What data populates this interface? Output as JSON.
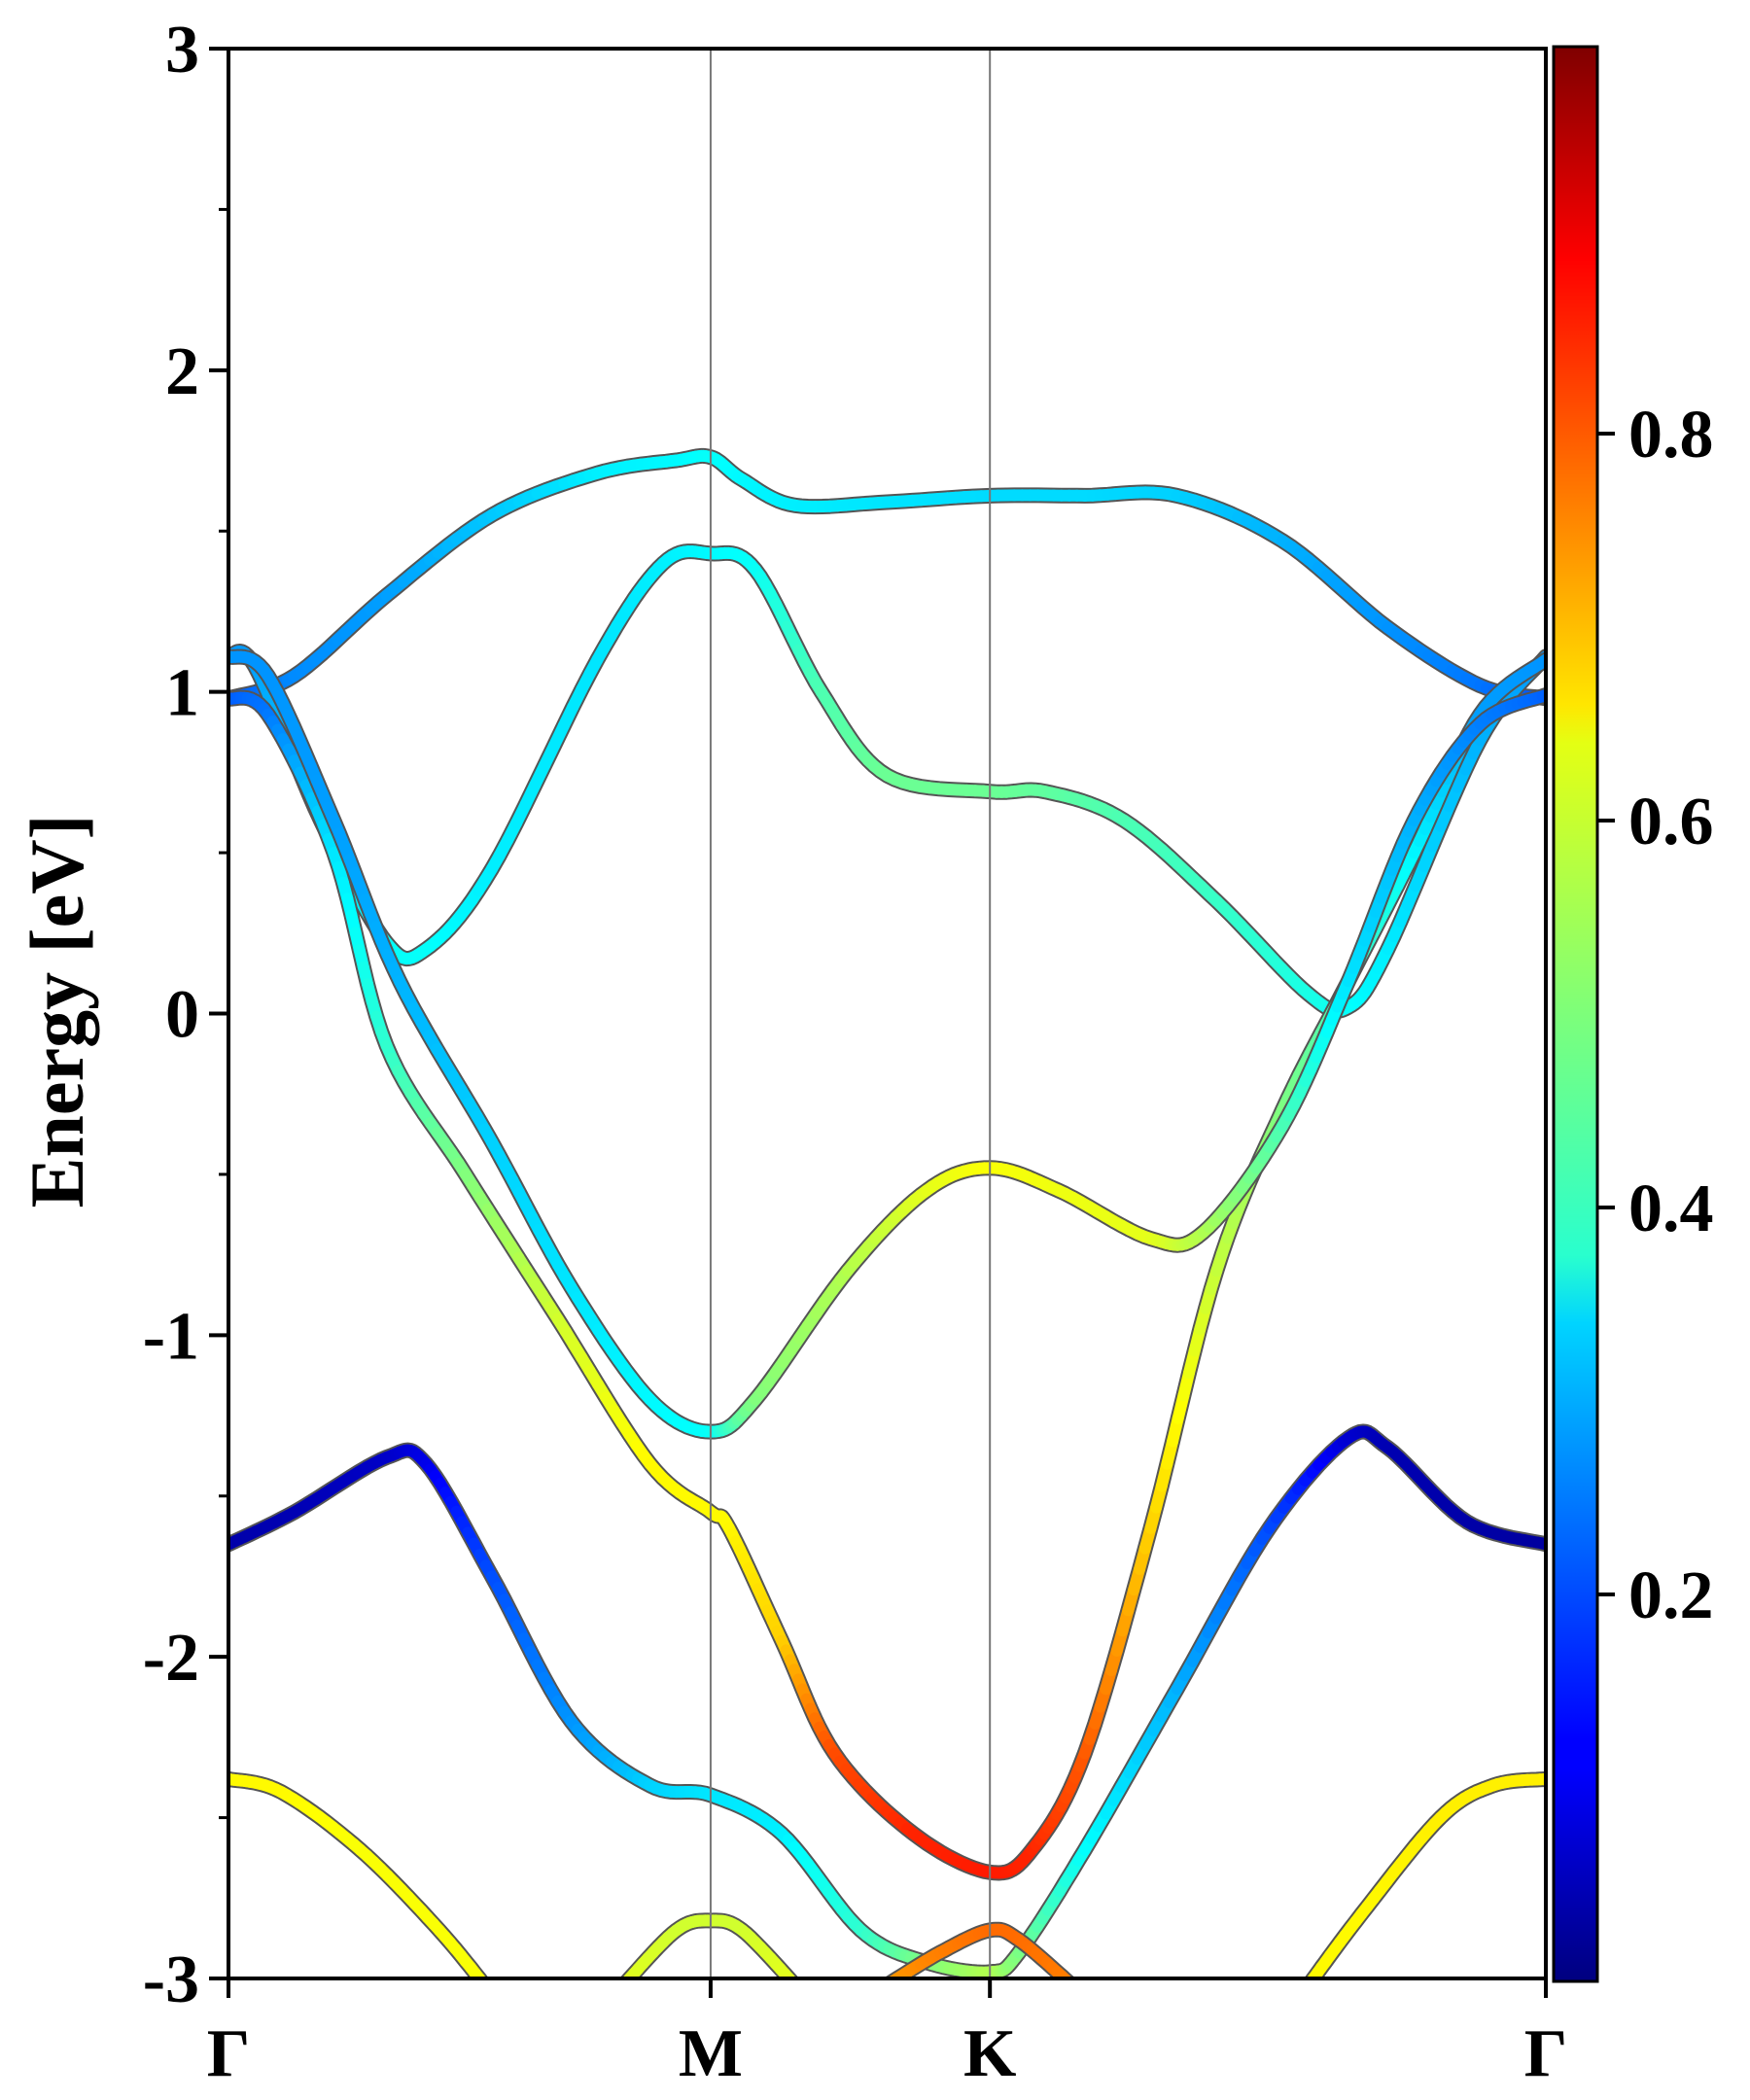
{
  "chart_data": {
    "type": "line",
    "title": "",
    "xlabel": "",
    "ylabel": "Energy [eV]",
    "ylim": [
      -3,
      3
    ],
    "yticks": [
      "3",
      "2",
      "1",
      "0",
      "-1",
      "-2",
      "-3"
    ],
    "ytick_values": [
      3,
      2,
      1,
      0,
      -1,
      -2,
      -3
    ],
    "yminor_ticks": [
      -2.5,
      -1.5,
      -0.5,
      0.5,
      1.5,
      2.5
    ],
    "kpoints": [
      {
        "label": "Γ",
        "x": 0.0
      },
      {
        "label": "M",
        "x": 0.366
      },
      {
        "label": "K",
        "x": 0.578
      },
      {
        "label": "Γ",
        "x": 1.0
      }
    ],
    "colorbar": {
      "colormap": "jet",
      "range": [
        0,
        1
      ],
      "tick_labels": [
        "0.2",
        "0.4",
        "0.6",
        "0.8"
      ],
      "tick_values": [
        0.2,
        0.4,
        0.6,
        0.8
      ]
    },
    "series": [
      {
        "name": "band-1",
        "points": [
          [
            0,
            0.98,
            0.2
          ],
          [
            0.05,
            1.05,
            0.26
          ],
          [
            0.12,
            1.3,
            0.28
          ],
          [
            0.2,
            1.55,
            0.32
          ],
          [
            0.28,
            1.68,
            0.36
          ],
          [
            0.34,
            1.72,
            0.37
          ],
          [
            0.366,
            1.73,
            0.38
          ],
          [
            0.39,
            1.66,
            0.37
          ],
          [
            0.43,
            1.58,
            0.36
          ],
          [
            0.5,
            1.59,
            0.35
          ],
          [
            0.578,
            1.61,
            0.34
          ],
          [
            0.65,
            1.61,
            0.34
          ],
          [
            0.72,
            1.61,
            0.33
          ],
          [
            0.8,
            1.47,
            0.3
          ],
          [
            0.88,
            1.2,
            0.27
          ],
          [
            0.95,
            1.02,
            0.24
          ],
          [
            1,
            0.98,
            0.2
          ]
        ]
      },
      {
        "name": "band-2",
        "points": [
          [
            0,
            1.11,
            0.27
          ],
          [
            0.02,
            1.08,
            0.28
          ],
          [
            0.07,
            0.6,
            0.33
          ],
          [
            0.12,
            0.22,
            0.38
          ],
          [
            0.15,
            0.2,
            0.38
          ],
          [
            0.2,
            0.45,
            0.36
          ],
          [
            0.28,
            1.1,
            0.35
          ],
          [
            0.33,
            1.4,
            0.36
          ],
          [
            0.366,
            1.43,
            0.37
          ],
          [
            0.4,
            1.38,
            0.38
          ],
          [
            0.45,
            1.0,
            0.45
          ],
          [
            0.5,
            0.74,
            0.48
          ],
          [
            0.578,
            0.69,
            0.48
          ],
          [
            0.62,
            0.69,
            0.47
          ],
          [
            0.68,
            0.6,
            0.45
          ],
          [
            0.75,
            0.35,
            0.43
          ],
          [
            0.82,
            0.06,
            0.4
          ],
          [
            0.85,
            0.02,
            0.38
          ],
          [
            0.88,
            0.2,
            0.36
          ],
          [
            0.95,
            0.85,
            0.3
          ],
          [
            1,
            1.11,
            0.27
          ]
        ]
      },
      {
        "name": "band-3",
        "points": [
          [
            0,
            0.98,
            0.21
          ],
          [
            0.03,
            0.93,
            0.24
          ],
          [
            0.08,
            0.5,
            0.35
          ],
          [
            0.12,
            -0.1,
            0.42
          ],
          [
            0.18,
            -0.5,
            0.5
          ],
          [
            0.25,
            -0.95,
            0.58
          ],
          [
            0.32,
            -1.4,
            0.63
          ],
          [
            0.366,
            -1.55,
            0.63
          ],
          [
            0.38,
            -1.6,
            0.63
          ],
          [
            0.42,
            -1.95,
            0.67
          ],
          [
            0.46,
            -2.3,
            0.8
          ],
          [
            0.52,
            -2.55,
            0.84
          ],
          [
            0.578,
            -2.67,
            0.85
          ],
          [
            0.61,
            -2.6,
            0.84
          ],
          [
            0.65,
            -2.3,
            0.79
          ],
          [
            0.7,
            -1.6,
            0.67
          ],
          [
            0.75,
            -0.8,
            0.57
          ],
          [
            0.8,
            -0.3,
            0.5
          ],
          [
            0.85,
            0.1,
            0.44
          ],
          [
            0.9,
            0.5,
            0.37
          ],
          [
            0.95,
            0.93,
            0.28
          ],
          [
            1,
            1.1,
            0.27
          ]
        ]
      },
      {
        "name": "band-4",
        "points": [
          [
            0,
            1.11,
            0.27
          ],
          [
            0.03,
            1.05,
            0.27
          ],
          [
            0.08,
            0.6,
            0.28
          ],
          [
            0.13,
            0.1,
            0.3
          ],
          [
            0.2,
            -0.4,
            0.33
          ],
          [
            0.26,
            -0.85,
            0.35
          ],
          [
            0.32,
            -1.2,
            0.37
          ],
          [
            0.366,
            -1.3,
            0.38
          ],
          [
            0.4,
            -1.2,
            0.5
          ],
          [
            0.47,
            -0.8,
            0.55
          ],
          [
            0.53,
            -0.55,
            0.6
          ],
          [
            0.578,
            -0.48,
            0.62
          ],
          [
            0.63,
            -0.55,
            0.61
          ],
          [
            0.7,
            -0.7,
            0.6
          ],
          [
            0.74,
            -0.68,
            0.55
          ],
          [
            0.8,
            -0.35,
            0.45
          ],
          [
            0.85,
            0.1,
            0.35
          ],
          [
            0.9,
            0.6,
            0.3
          ],
          [
            0.95,
            0.9,
            0.25
          ],
          [
            1,
            0.99,
            0.22
          ]
        ]
      },
      {
        "name": "band-5",
        "points": [
          [
            0,
            -1.65,
            0.04
          ],
          [
            0.05,
            -1.55,
            0.05
          ],
          [
            0.12,
            -1.38,
            0.07
          ],
          [
            0.15,
            -1.4,
            0.1
          ],
          [
            0.2,
            -1.75,
            0.2
          ],
          [
            0.26,
            -2.2,
            0.27
          ],
          [
            0.32,
            -2.4,
            0.33
          ],
          [
            0.366,
            -2.43,
            0.35
          ],
          [
            0.42,
            -2.55,
            0.36
          ],
          [
            0.48,
            -2.85,
            0.42
          ],
          [
            0.53,
            -2.95,
            0.5
          ],
          [
            0.578,
            -2.98,
            0.55
          ],
          [
            0.6,
            -2.92,
            0.5
          ],
          [
            0.65,
            -2.6,
            0.38
          ],
          [
            0.72,
            -2.1,
            0.3
          ],
          [
            0.79,
            -1.6,
            0.2
          ],
          [
            0.85,
            -1.32,
            0.08
          ],
          [
            0.88,
            -1.35,
            0.05
          ],
          [
            0.94,
            -1.58,
            0.04
          ],
          [
            1,
            -1.65,
            0.03
          ]
        ]
      },
      {
        "name": "band-6",
        "points": [
          [
            0,
            -2.38,
            0.63
          ],
          [
            0.04,
            -2.42,
            0.63
          ],
          [
            0.1,
            -2.6,
            0.62
          ],
          [
            0.16,
            -2.85,
            0.62
          ],
          [
            0.2,
            -3.05,
            0.62
          ]
        ]
      },
      {
        "name": "band-7",
        "points": [
          [
            0.3,
            -3.02,
            0.6
          ],
          [
            0.34,
            -2.85,
            0.58
          ],
          [
            0.366,
            -2.82,
            0.58
          ],
          [
            0.39,
            -2.85,
            0.58
          ],
          [
            0.43,
            -3.02,
            0.6
          ]
        ]
      },
      {
        "name": "band-8",
        "points": [
          [
            0.5,
            -3.02,
            0.72
          ],
          [
            0.54,
            -2.92,
            0.75
          ],
          [
            0.578,
            -2.85,
            0.77
          ],
          [
            0.6,
            -2.88,
            0.77
          ],
          [
            0.64,
            -3.02,
            0.75
          ]
        ]
      },
      {
        "name": "band-9",
        "points": [
          [
            0.82,
            -3.02,
            0.63
          ],
          [
            0.86,
            -2.8,
            0.63
          ],
          [
            0.92,
            -2.5,
            0.64
          ],
          [
            0.96,
            -2.4,
            0.64
          ],
          [
            1,
            -2.38,
            0.64
          ]
        ]
      }
    ]
  }
}
